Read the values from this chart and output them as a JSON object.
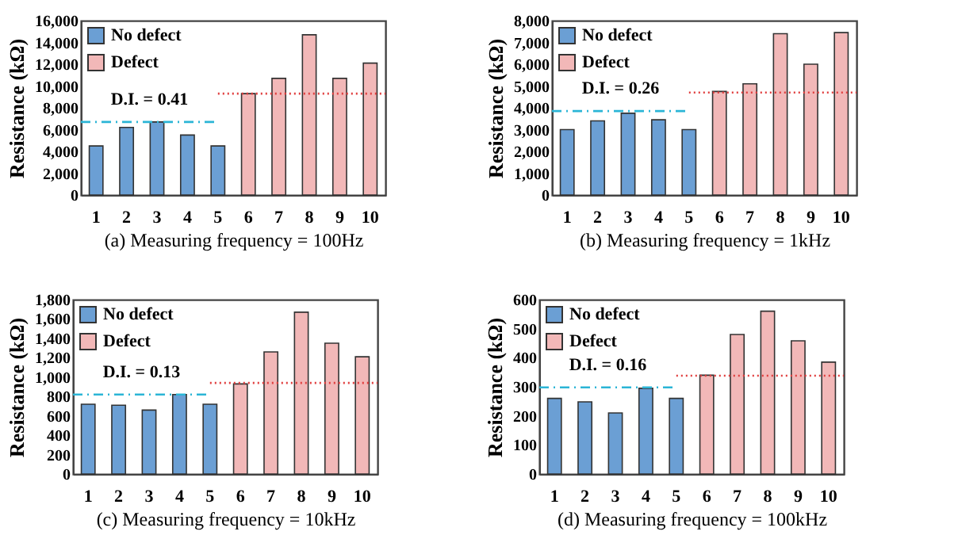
{
  "chart_data": [
    {
      "type": "bar",
      "xlabel": "(a) Measuring frequency = 100Hz",
      "ylabel": "Resistance (kΩ)",
      "categories": [
        "1",
        "2",
        "3",
        "4",
        "5",
        "6",
        "7",
        "8",
        "9",
        "10"
      ],
      "series": [
        {
          "name": "No defect",
          "color": "#6b9fd4",
          "values": [
            4500,
            6200,
            6700,
            5500,
            4500,
            null,
            null,
            null,
            null,
            null
          ]
        },
        {
          "name": "Defect",
          "color": "#f2b8b8",
          "values": [
            null,
            null,
            null,
            null,
            null,
            9300,
            10700,
            14700,
            10700,
            12100
          ]
        }
      ],
      "ylim": [
        0,
        16000
      ],
      "yticks": [
        0,
        {
          "value": 2000,
          "label": "2,000"
        },
        {
          "value": 4000,
          "label": "4,000"
        },
        {
          "value": 6000,
          "label": "6,000"
        },
        {
          "value": 8000,
          "label": "8,000"
        },
        {
          "value": 10000,
          "label": "10,000"
        },
        {
          "value": 12000,
          "label": "12,000"
        },
        {
          "value": 14000,
          "label": "14,000"
        },
        {
          "value": 16000,
          "label": "16,000"
        }
      ],
      "ref_lines": [
        {
          "axis": "y",
          "value": 6700,
          "color": "#2bb5d6",
          "line_style": "dashed"
        },
        {
          "axis": "y",
          "value": 9300,
          "color": "#e03c3c",
          "line_style": "dotted"
        }
      ],
      "annotations": [
        "D.I. = 0.41"
      ],
      "grid": false,
      "legend": "top left"
    },
    {
      "type": "bar",
      "xlabel": "(b) Measuring frequency = 1kHz",
      "ylabel": "Resistance (kΩ)",
      "categories": [
        "1",
        "2",
        "3",
        "4",
        "5",
        "6",
        "7",
        "8",
        "9",
        "10"
      ],
      "series": [
        {
          "name": "No defect",
          "color": "#6b9fd4",
          "values": [
            3000,
            3400,
            3750,
            3450,
            3000,
            null,
            null,
            null,
            null,
            null
          ]
        },
        {
          "name": "Defect",
          "color": "#f2b8b8",
          "values": [
            null,
            null,
            null,
            null,
            null,
            4750,
            5100,
            7400,
            6000,
            7450
          ]
        }
      ],
      "ylim": [
        0,
        8000
      ],
      "yticks": [
        0,
        {
          "value": 1000,
          "label": "1,000"
        },
        {
          "value": 2000,
          "label": "2,000"
        },
        {
          "value": 3000,
          "label": "3,000"
        },
        {
          "value": 4000,
          "label": "4,000"
        },
        {
          "value": 5000,
          "label": "5,000"
        },
        {
          "value": 6000,
          "label": "6,000"
        },
        {
          "value": 7000,
          "label": "7,000"
        },
        {
          "value": 8000,
          "label": "8,000"
        }
      ],
      "ref_lines": [
        {
          "axis": "y",
          "value": 3850,
          "color": "#2bb5d6",
          "line_style": "dashed"
        },
        {
          "axis": "y",
          "value": 4700,
          "color": "#e03c3c",
          "line_style": "dotted"
        }
      ],
      "annotations": [
        "D.I. = 0.26"
      ],
      "grid": false,
      "legend": "top left"
    },
    {
      "type": "bar",
      "xlabel": "(c) Measuring frequency = 10kHz",
      "ylabel": "Resistance (kΩ)",
      "categories": [
        "1",
        "2",
        "3",
        "4",
        "5",
        "6",
        "7",
        "8",
        "9",
        "10"
      ],
      "series": [
        {
          "name": "No defect",
          "color": "#6b9fd4",
          "values": [
            720,
            710,
            660,
            820,
            720,
            null,
            null,
            null,
            null,
            null
          ]
        },
        {
          "name": "Defect",
          "color": "#f2b8b8",
          "values": [
            null,
            null,
            null,
            null,
            null,
            930,
            1260,
            1670,
            1350,
            1210
          ]
        }
      ],
      "ylim": [
        0,
        1800
      ],
      "yticks": [
        0,
        200,
        400,
        600,
        800,
        {
          "value": 1000,
          "label": "1,000"
        },
        {
          "value": 1200,
          "label": "1,200"
        },
        {
          "value": 1400,
          "label": "1,400"
        },
        {
          "value": 1600,
          "label": "1,600"
        },
        {
          "value": 1800,
          "label": "1,800"
        }
      ],
      "ref_lines": [
        {
          "axis": "y",
          "value": 820,
          "color": "#2bb5d6",
          "line_style": "dashed"
        },
        {
          "axis": "y",
          "value": 940,
          "color": "#e03c3c",
          "line_style": "dotted"
        }
      ],
      "annotations": [
        "D.I. = 0.13"
      ],
      "grid": false,
      "legend": "top left"
    },
    {
      "type": "bar",
      "xlabel": "(d) Measuring frequency = 100kHz",
      "ylabel": "Resistance (kΩ)",
      "categories": [
        "1",
        "2",
        "3",
        "4",
        "5",
        "6",
        "7",
        "8",
        "9",
        "10"
      ],
      "series": [
        {
          "name": "No defect",
          "color": "#6b9fd4",
          "values": [
            260,
            248,
            210,
            295,
            260,
            null,
            null,
            null,
            null,
            null
          ]
        },
        {
          "name": "Defect",
          "color": "#f2b8b8",
          "values": [
            null,
            null,
            null,
            null,
            null,
            340,
            480,
            560,
            458,
            385
          ]
        }
      ],
      "ylim": [
        0,
        600
      ],
      "yticks": [
        0,
        100,
        200,
        300,
        400,
        500,
        600
      ],
      "ref_lines": [
        {
          "axis": "y",
          "value": 298,
          "color": "#2bb5d6",
          "line_style": "dashed"
        },
        {
          "axis": "y",
          "value": 338,
          "color": "#e03c3c",
          "line_style": "dotted"
        }
      ],
      "annotations": [
        "D.I. = 0.16"
      ],
      "grid": false,
      "legend": "top left"
    }
  ]
}
